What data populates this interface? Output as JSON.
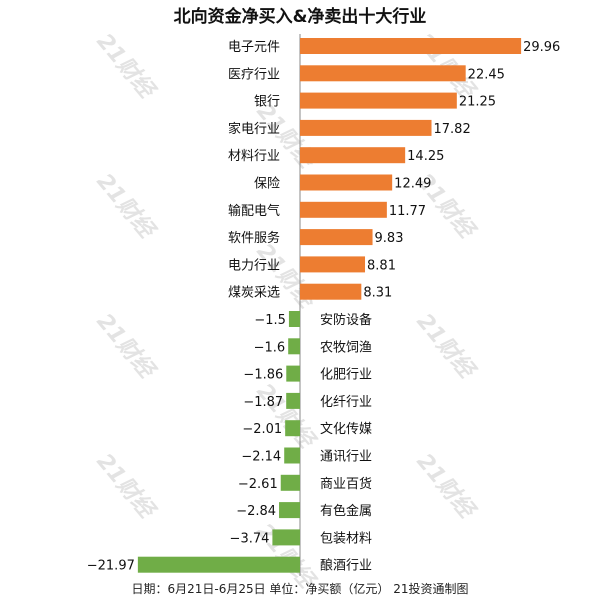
{
  "chart_data": {
    "type": "bar",
    "orientation": "horizontal",
    "title": "北向资金净买入&净卖出十大行业",
    "footer": "日期：6月21日-6月25日 单位：净买额（亿元） 21投资通制图",
    "watermark": "21财经",
    "categories": [
      "电子元件",
      "医疗行业",
      "银行",
      "家电行业",
      "材料行业",
      "保险",
      "输配电气",
      "软件服务",
      "电力行业",
      "煤炭采选",
      "安防设备",
      "农牧饲渔",
      "化肥行业",
      "化纤行业",
      "文化传媒",
      "通讯行业",
      "商业百货",
      "有色金属",
      "包装材料",
      "酿酒行业"
    ],
    "values": [
      29.96,
      22.45,
      21.25,
      17.82,
      14.25,
      12.49,
      11.77,
      9.83,
      8.81,
      8.31,
      -1.5,
      -1.6,
      -1.86,
      -1.87,
      -2.01,
      -2.14,
      -2.61,
      -2.84,
      -3.74,
      -21.97
    ],
    "value_labels": [
      "29.96",
      "22.45",
      "21.25",
      "17.82",
      "14.25",
      "12.49",
      "11.77",
      "9.83",
      "8.81",
      "8.31",
      "−1.5",
      "−1.6",
      "−1.86",
      "−1.87",
      "−2.01",
      "−2.14",
      "−2.61",
      "−2.84",
      "−3.74",
      "−21.97"
    ],
    "colors": {
      "positive": "#ED7D31",
      "negative": "#70AD47"
    },
    "xlabel": "",
    "ylabel": "",
    "grid": false
  }
}
